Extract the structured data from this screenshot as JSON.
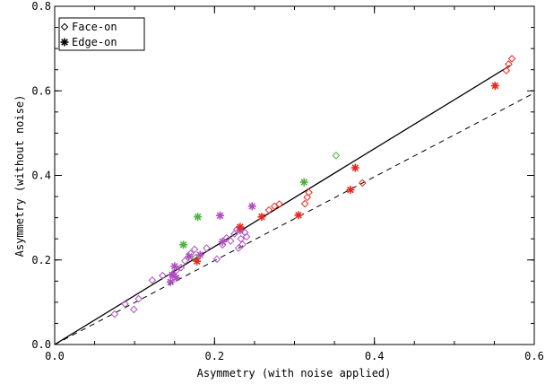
{
  "chart_data": {
    "type": "scatter",
    "title": "",
    "xlabel": "Asymmetry (with noise applied)",
    "ylabel": "Asymmetry (without noise)",
    "xlim": [
      0.0,
      0.6
    ],
    "ylim": [
      0.0,
      0.8
    ],
    "x_ticks": [
      "0.0",
      "0.2",
      "0.4",
      "0.6"
    ],
    "y_ticks": [
      "0.0",
      "0.2",
      "0.4",
      "0.6",
      "0.8"
    ],
    "x_tick_values": [
      0.0,
      0.2,
      0.4,
      0.6
    ],
    "y_tick_values": [
      0.0,
      0.2,
      0.4,
      0.6,
      0.8
    ],
    "grid": false,
    "legend_position": "top-left",
    "legend": [
      {
        "label": "Face-on",
        "marker": "diamond"
      },
      {
        "label": "Edge-on",
        "marker": "asterisk"
      }
    ],
    "colors": {
      "purple": "#b04fc0",
      "red": "#e8281e",
      "green": "#4cb43c",
      "black": "#000000"
    },
    "lines": [
      {
        "style": "solid",
        "x": [
          0.0,
          0.57
        ],
        "y": [
          0.0,
          0.66
        ]
      },
      {
        "style": "dashed",
        "x": [
          0.0,
          0.6
        ],
        "y": [
          0.0,
          0.595
        ]
      }
    ],
    "series": [
      {
        "name": "Face-on",
        "marker": "diamond",
        "points": [
          {
            "x": 0.075,
            "y": 0.072,
            "color": "purple"
          },
          {
            "x": 0.088,
            "y": 0.096,
            "color": "purple"
          },
          {
            "x": 0.099,
            "y": 0.083,
            "color": "purple"
          },
          {
            "x": 0.105,
            "y": 0.108,
            "color": "purple"
          },
          {
            "x": 0.122,
            "y": 0.152,
            "color": "purple"
          },
          {
            "x": 0.135,
            "y": 0.163,
            "color": "purple"
          },
          {
            "x": 0.147,
            "y": 0.165,
            "color": "purple"
          },
          {
            "x": 0.152,
            "y": 0.175,
            "color": "purple"
          },
          {
            "x": 0.158,
            "y": 0.182,
            "color": "purple"
          },
          {
            "x": 0.163,
            "y": 0.198,
            "color": "purple"
          },
          {
            "x": 0.17,
            "y": 0.215,
            "color": "purple"
          },
          {
            "x": 0.175,
            "y": 0.225,
            "color": "purple"
          },
          {
            "x": 0.19,
            "y": 0.228,
            "color": "purple"
          },
          {
            "x": 0.203,
            "y": 0.202,
            "color": "purple"
          },
          {
            "x": 0.21,
            "y": 0.236,
            "color": "purple"
          },
          {
            "x": 0.215,
            "y": 0.252,
            "color": "purple"
          },
          {
            "x": 0.22,
            "y": 0.245,
            "color": "purple"
          },
          {
            "x": 0.225,
            "y": 0.262,
            "color": "purple"
          },
          {
            "x": 0.228,
            "y": 0.272,
            "color": "purple"
          },
          {
            "x": 0.23,
            "y": 0.228,
            "color": "purple"
          },
          {
            "x": 0.235,
            "y": 0.237,
            "color": "purple"
          },
          {
            "x": 0.238,
            "y": 0.265,
            "color": "purple"
          },
          {
            "x": 0.233,
            "y": 0.25,
            "color": "purple"
          },
          {
            "x": 0.24,
            "y": 0.255,
            "color": "purple"
          },
          {
            "x": 0.268,
            "y": 0.318,
            "color": "red"
          },
          {
            "x": 0.275,
            "y": 0.327,
            "color": "red"
          },
          {
            "x": 0.281,
            "y": 0.332,
            "color": "red"
          },
          {
            "x": 0.313,
            "y": 0.333,
            "color": "red"
          },
          {
            "x": 0.316,
            "y": 0.348,
            "color": "red"
          },
          {
            "x": 0.318,
            "y": 0.36,
            "color": "red"
          },
          {
            "x": 0.385,
            "y": 0.382,
            "color": "red"
          },
          {
            "x": 0.565,
            "y": 0.648,
            "color": "red"
          },
          {
            "x": 0.568,
            "y": 0.663,
            "color": "red"
          },
          {
            "x": 0.572,
            "y": 0.676,
            "color": "red"
          },
          {
            "x": 0.176,
            "y": 0.205,
            "color": "green"
          },
          {
            "x": 0.352,
            "y": 0.447,
            "color": "green"
          }
        ]
      },
      {
        "name": "Edge-on",
        "marker": "asterisk",
        "points": [
          {
            "x": 0.145,
            "y": 0.148,
            "color": "purple"
          },
          {
            "x": 0.147,
            "y": 0.165,
            "color": "purple"
          },
          {
            "x": 0.15,
            "y": 0.185,
            "color": "purple"
          },
          {
            "x": 0.152,
            "y": 0.158,
            "color": "purple"
          },
          {
            "x": 0.168,
            "y": 0.208,
            "color": "purple"
          },
          {
            "x": 0.182,
            "y": 0.212,
            "color": "purple"
          },
          {
            "x": 0.207,
            "y": 0.305,
            "color": "purple"
          },
          {
            "x": 0.21,
            "y": 0.243,
            "color": "purple"
          },
          {
            "x": 0.232,
            "y": 0.27,
            "color": "purple"
          },
          {
            "x": 0.247,
            "y": 0.327,
            "color": "purple"
          },
          {
            "x": 0.178,
            "y": 0.197,
            "color": "red"
          },
          {
            "x": 0.232,
            "y": 0.278,
            "color": "red"
          },
          {
            "x": 0.259,
            "y": 0.302,
            "color": "red"
          },
          {
            "x": 0.305,
            "y": 0.306,
            "color": "red"
          },
          {
            "x": 0.37,
            "y": 0.366,
            "color": "red"
          },
          {
            "x": 0.376,
            "y": 0.418,
            "color": "red"
          },
          {
            "x": 0.551,
            "y": 0.612,
            "color": "red"
          },
          {
            "x": 0.161,
            "y": 0.236,
            "color": "green"
          },
          {
            "x": 0.179,
            "y": 0.302,
            "color": "green"
          },
          {
            "x": 0.312,
            "y": 0.384,
            "color": "green"
          }
        ]
      }
    ]
  }
}
